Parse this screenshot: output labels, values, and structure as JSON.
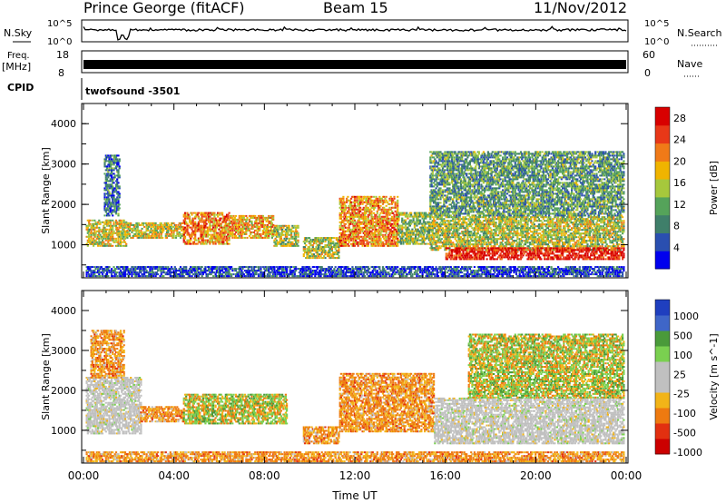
{
  "header": {
    "station": "Prince George (fitACF)",
    "beam": "Beam 15",
    "date": "11/Nov/2012"
  },
  "top_panels": {
    "nsky_label": "N.Sky",
    "nsky_ticks": [
      "10^5",
      "10^0"
    ],
    "nsearch_label": "N.Search",
    "nsearch_ticks": [
      "10^5",
      "10^0"
    ],
    "freq_label": "Freq.",
    "freq_unit": "[MHz]",
    "freq_ticks": [
      "18",
      "8"
    ],
    "nave_label": "Nave",
    "nave_ticks": [
      "60",
      "0"
    ],
    "cpid_label": "CPID",
    "cpid_value": "twofsound  -3501"
  },
  "colors": {
    "power_scale": [
      "#0000ee",
      "#2a4fb0",
      "#3f7f6a",
      "#55a35a",
      "#a6c83c",
      "#f0b400",
      "#f07a18",
      "#e83818",
      "#d80000"
    ],
    "velocity_scale": [
      "#1f3fbf",
      "#3f66c8",
      "#4a9a3a",
      "#7ad050",
      "#c0c0c0",
      "#c0c0c0",
      "#f2b418",
      "#ee7a10",
      "#e23010",
      "#cc0000"
    ]
  },
  "chart_data": [
    {
      "type": "heatmap",
      "name": "power",
      "ylabel": "Slant Range [km]",
      "xlabel": "Time UT",
      "x_ticks": [
        "00:00",
        "04:00",
        "08:00",
        "12:00",
        "16:00",
        "20:00",
        "00:00"
      ],
      "y_ticks": [
        "1000",
        "2000",
        "3000",
        "4000"
      ],
      "xlim_hours": [
        0,
        24
      ],
      "ylim_km": [
        180,
        4500
      ],
      "colorbar_label": "Power [dB]",
      "colorbar_ticks": [
        "4",
        "8",
        "12",
        "16",
        "20",
        "24",
        "28"
      ],
      "colorbar_range": [
        0,
        30
      ],
      "regions": [
        {
          "t0": 0.1,
          "t1": 1.9,
          "r0": 950,
          "r1": 1600,
          "level": 0.55
        },
        {
          "t0": 0.9,
          "t1": 1.6,
          "r0": 1700,
          "r1": 3200,
          "level": 0.25
        },
        {
          "t0": 1.9,
          "t1": 4.4,
          "r0": 1150,
          "r1": 1550,
          "level": 0.55
        },
        {
          "t0": 4.4,
          "t1": 6.4,
          "r0": 1000,
          "r1": 1800,
          "level": 0.7
        },
        {
          "t0": 6.4,
          "t1": 8.4,
          "r0": 1150,
          "r1": 1700,
          "level": 0.65
        },
        {
          "t0": 8.4,
          "t1": 9.5,
          "r0": 950,
          "r1": 1450,
          "level": 0.5
        },
        {
          "t0": 9.7,
          "t1": 11.3,
          "r0": 650,
          "r1": 1150,
          "level": 0.5
        },
        {
          "t0": 11.3,
          "t1": 13.9,
          "r0": 950,
          "r1": 2200,
          "level": 0.7
        },
        {
          "t0": 13.9,
          "t1": 15.3,
          "r0": 1000,
          "r1": 1800,
          "level": 0.45
        },
        {
          "t0": 15.3,
          "t1": 23.9,
          "r0": 850,
          "r1": 1700,
          "level": 0.5
        },
        {
          "t0": 16.0,
          "t1": 23.9,
          "r0": 620,
          "r1": 900,
          "level": 0.92
        },
        {
          "t0": 15.3,
          "t1": 23.9,
          "r0": 1700,
          "r1": 3300,
          "level": 0.35
        },
        {
          "t0": 0.1,
          "t1": 23.9,
          "r0": 200,
          "r1": 450,
          "level": 0.15
        }
      ]
    },
    {
      "type": "heatmap",
      "name": "velocity",
      "ylabel": "Slant Range [km]",
      "xlabel": "Time UT",
      "x_ticks": [
        "00:00",
        "04:00",
        "08:00",
        "12:00",
        "16:00",
        "20:00",
        "00:00"
      ],
      "y_ticks": [
        "1000",
        "2000",
        "3000",
        "4000"
      ],
      "xlim_hours": [
        0,
        24
      ],
      "ylim_km": [
        180,
        4500
      ],
      "colorbar_label": "Velocity [m s^-1]",
      "colorbar_ticks": [
        "1000",
        "500",
        "100",
        "25",
        "-25",
        "-100",
        "-500",
        "-1000"
      ],
      "regions": [
        {
          "t0": 0.1,
          "t1": 2.5,
          "r0": 900,
          "r1": 2300,
          "class": "ground"
        },
        {
          "t0": 0.3,
          "t1": 1.8,
          "r0": 2300,
          "r1": 3500,
          "class": "away"
        },
        {
          "t0": 2.5,
          "t1": 4.4,
          "r0": 1200,
          "r1": 1600,
          "class": "away"
        },
        {
          "t0": 4.4,
          "t1": 9.0,
          "r0": 1150,
          "r1": 1900,
          "class": "mix"
        },
        {
          "t0": 9.7,
          "t1": 11.3,
          "r0": 650,
          "r1": 1100,
          "class": "away"
        },
        {
          "t0": 11.3,
          "t1": 15.5,
          "r0": 950,
          "r1": 2400,
          "class": "away"
        },
        {
          "t0": 15.5,
          "t1": 23.9,
          "r0": 650,
          "r1": 1800,
          "class": "ground"
        },
        {
          "t0": 17.0,
          "t1": 23.9,
          "r0": 1800,
          "r1": 3400,
          "class": "mix"
        },
        {
          "t0": 0.1,
          "t1": 23.9,
          "r0": 200,
          "r1": 450,
          "class": "away"
        }
      ]
    }
  ]
}
